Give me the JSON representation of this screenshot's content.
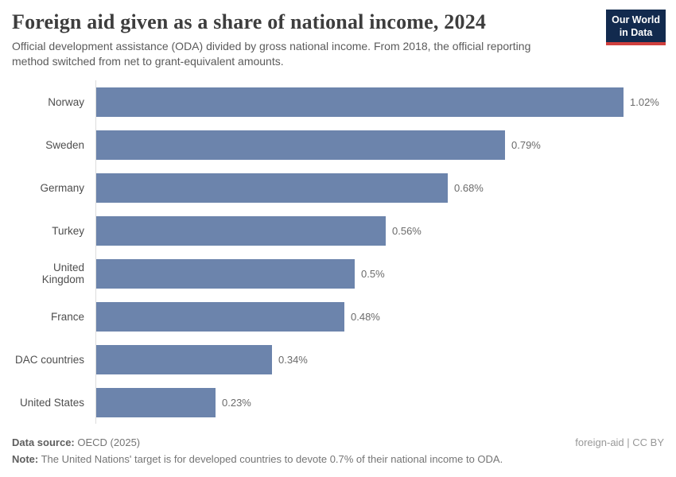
{
  "header": {
    "title": "Foreign aid given as a share of national income, 2024",
    "subtitle_lines": [
      "Official development assistance (ODA) divided by gross national income. From 2018, the official reporting",
      "method switched from net to grant-equivalent amounts."
    ],
    "logo": {
      "line1": "Our World",
      "line2": "in Data"
    }
  },
  "chart_data": {
    "type": "bar",
    "orientation": "horizontal",
    "title": "Foreign aid given as a share of national income, 2024",
    "subtitle": "Official development assistance (ODA) divided by gross national income. From 2018, the official reporting method switched from net to grant-equivalent amounts.",
    "unit": "%",
    "categories": [
      "Norway",
      "Sweden",
      "Germany",
      "Turkey",
      "United Kingdom",
      "France",
      "DAC countries",
      "United States"
    ],
    "values": [
      1.02,
      0.79,
      0.68,
      0.56,
      0.5,
      0.48,
      0.34,
      0.23
    ],
    "value_labels": [
      "1.02%",
      "0.79%",
      "0.68%",
      "0.56%",
      "0.5%",
      "0.48%",
      "0.34%",
      "0.23%"
    ],
    "xlim": [
      0,
      1.05
    ],
    "grid": false,
    "legend": "none",
    "bar_color": "#6c84ac",
    "axis_color": "#dcdcdc"
  },
  "footer": {
    "datasource_label": "Data source:",
    "datasource_value": "OECD (2025)",
    "note_label": "Note:",
    "note_value": "The United Nations' target is for developed countries to devote 0.7% of their national income to ODA.",
    "credit": "foreign-aid | CC BY"
  },
  "colors": {
    "bar": "#6c84ac",
    "logo_bg": "#122a4e",
    "logo_accent": "#d0403d",
    "title_text": "#3d3d3d"
  }
}
